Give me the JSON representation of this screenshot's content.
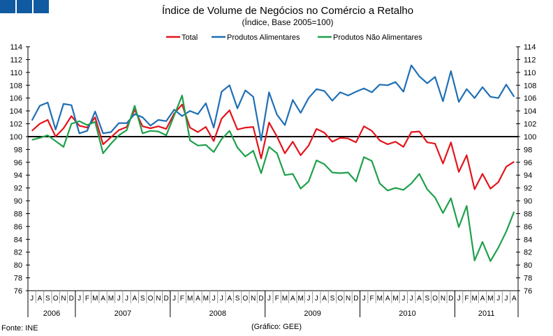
{
  "chart_data": {
    "type": "line",
    "title": "Índice de Volume de Negócios no Comércio a Retalho",
    "subtitle": "(Índice, Base 2005=100)",
    "source": "Fonte: INE",
    "credit": "(Gráfico: GEE)",
    "ylim": [
      76,
      114
    ],
    "yticks": [
      76,
      78,
      80,
      82,
      84,
      86,
      88,
      90,
      92,
      94,
      96,
      98,
      100,
      102,
      104,
      106,
      108,
      110,
      112,
      114
    ],
    "reference_line": 100,
    "legend_position": "top-center",
    "months": [
      "J",
      "A",
      "S",
      "O",
      "N",
      "D",
      "J",
      "F",
      "M",
      "A",
      "M",
      "J",
      "J",
      "A",
      "S",
      "O",
      "N",
      "D",
      "J",
      "F",
      "M",
      "A",
      "M",
      "J",
      "J",
      "A",
      "S",
      "O",
      "N",
      "D",
      "J",
      "F",
      "M",
      "A",
      "M",
      "J",
      "J",
      "A",
      "S",
      "O",
      "N",
      "D",
      "J",
      "F",
      "M",
      "A",
      "M",
      "J",
      "J",
      "A",
      "S",
      "O",
      "N",
      "D",
      "J",
      "F",
      "M",
      "A",
      "M",
      "J",
      "J",
      "A"
    ],
    "years": [
      {
        "label": "2006",
        "months": 6
      },
      {
        "label": "2007",
        "months": 12
      },
      {
        "label": "2008",
        "months": 12
      },
      {
        "label": "2009",
        "months": 12
      },
      {
        "label": "2010",
        "months": 12
      },
      {
        "label": "2011",
        "months": 8
      }
    ],
    "series": [
      {
        "name": "Total",
        "color": "#e3141b",
        "values": [
          100.9,
          102.0,
          102.6,
          100.0,
          101.3,
          103.2,
          101.7,
          101.4,
          103.0,
          98.8,
          99.9,
          101.0,
          101.5,
          104.2,
          101.6,
          101.3,
          101.6,
          101.2,
          103.6,
          105.0,
          101.4,
          100.7,
          101.5,
          99.3,
          102.8,
          104.1,
          101.1,
          101.4,
          101.5,
          96.6,
          102.2,
          100.0,
          97.4,
          99.2,
          97.1,
          98.6,
          101.2,
          100.6,
          99.2,
          99.8,
          99.7,
          99.1,
          101.6,
          100.9,
          99.4,
          98.8,
          99.2,
          98.4,
          100.7,
          100.8,
          99.1,
          98.9,
          95.8,
          99.1,
          94.5,
          97.1,
          91.8,
          94.2,
          91.9,
          92.9,
          95.3,
          96.1
        ]
      },
      {
        "name": "Produtos Alimentares",
        "color": "#1f6fb5",
        "values": [
          102.5,
          104.8,
          105.3,
          101.1,
          105.1,
          104.9,
          100.5,
          100.9,
          103.9,
          100.5,
          100.7,
          102.1,
          102.1,
          103.5,
          103.0,
          101.7,
          102.6,
          102.4,
          104.2,
          103.2,
          104.0,
          103.5,
          105.2,
          101.4,
          107.0,
          108.0,
          104.4,
          107.2,
          106.2,
          99.4,
          106.9,
          103.4,
          101.8,
          105.7,
          103.7,
          106.0,
          107.4,
          107.1,
          105.6,
          106.9,
          106.4,
          107.0,
          107.5,
          106.9,
          108.1,
          108.0,
          108.5,
          107.0,
          111.1,
          109.4,
          108.3,
          109.3,
          105.5,
          110.2,
          105.4,
          107.4,
          106.0,
          107.7,
          106.2,
          106.0,
          108.1,
          106.2
        ]
      },
      {
        "name": "Produtos Não Alimentares",
        "color": "#1ea04b",
        "values": [
          99.5,
          99.8,
          100.2,
          99.3,
          98.4,
          102.0,
          102.4,
          101.8,
          102.3,
          97.4,
          98.9,
          100.2,
          101.0,
          104.8,
          100.5,
          100.9,
          100.8,
          100.2,
          103.3,
          106.4,
          99.4,
          98.6,
          98.7,
          97.6,
          99.6,
          100.9,
          98.3,
          96.9,
          97.8,
          94.3,
          98.4,
          97.4,
          94.0,
          94.2,
          91.9,
          93.0,
          96.3,
          95.7,
          94.4,
          94.3,
          94.4,
          93.0,
          96.8,
          96.2,
          92.7,
          91.6,
          92.0,
          91.7,
          92.7,
          94.2,
          91.8,
          90.5,
          88.1,
          90.4,
          85.9,
          89.2,
          80.7,
          83.6,
          80.6,
          82.7,
          85.2,
          88.3
        ]
      }
    ]
  }
}
